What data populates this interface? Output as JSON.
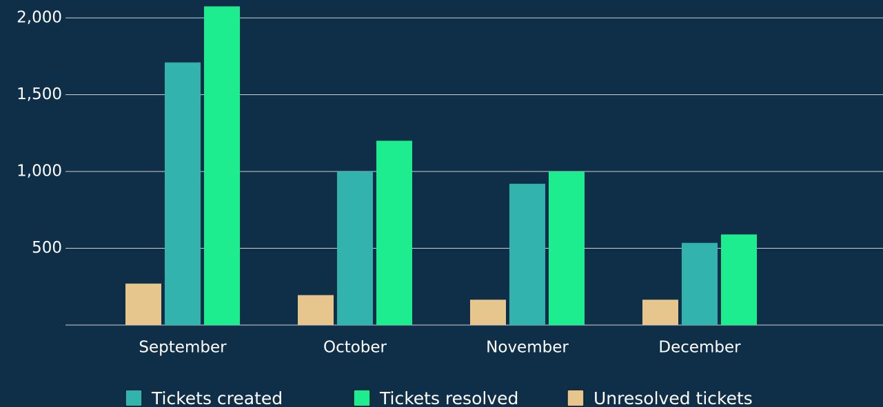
{
  "chart_data": {
    "type": "bar",
    "categories": [
      "September",
      "October",
      "November",
      "December"
    ],
    "series": [
      {
        "name": "Tickets created",
        "color": "#33b3ae",
        "values": [
          1710,
          1000,
          920,
          535
        ]
      },
      {
        "name": "Tickets resolved",
        "color": "#1ded8f",
        "values": [
          2075,
          1200,
          1000,
          590
        ]
      },
      {
        "name": "Unresolved tickets",
        "color": "#e6c68c",
        "values": [
          270,
          195,
          165,
          165
        ]
      }
    ],
    "ylim": [
      0,
      2100
    ],
    "yticks": [
      500,
      {
        "value": 1000,
        "label": "1,000"
      },
      {
        "value": 1500,
        "label": "1,500"
      },
      {
        "value": 2000,
        "label": "2,000"
      }
    ],
    "grid": true,
    "legend": "bottom"
  }
}
